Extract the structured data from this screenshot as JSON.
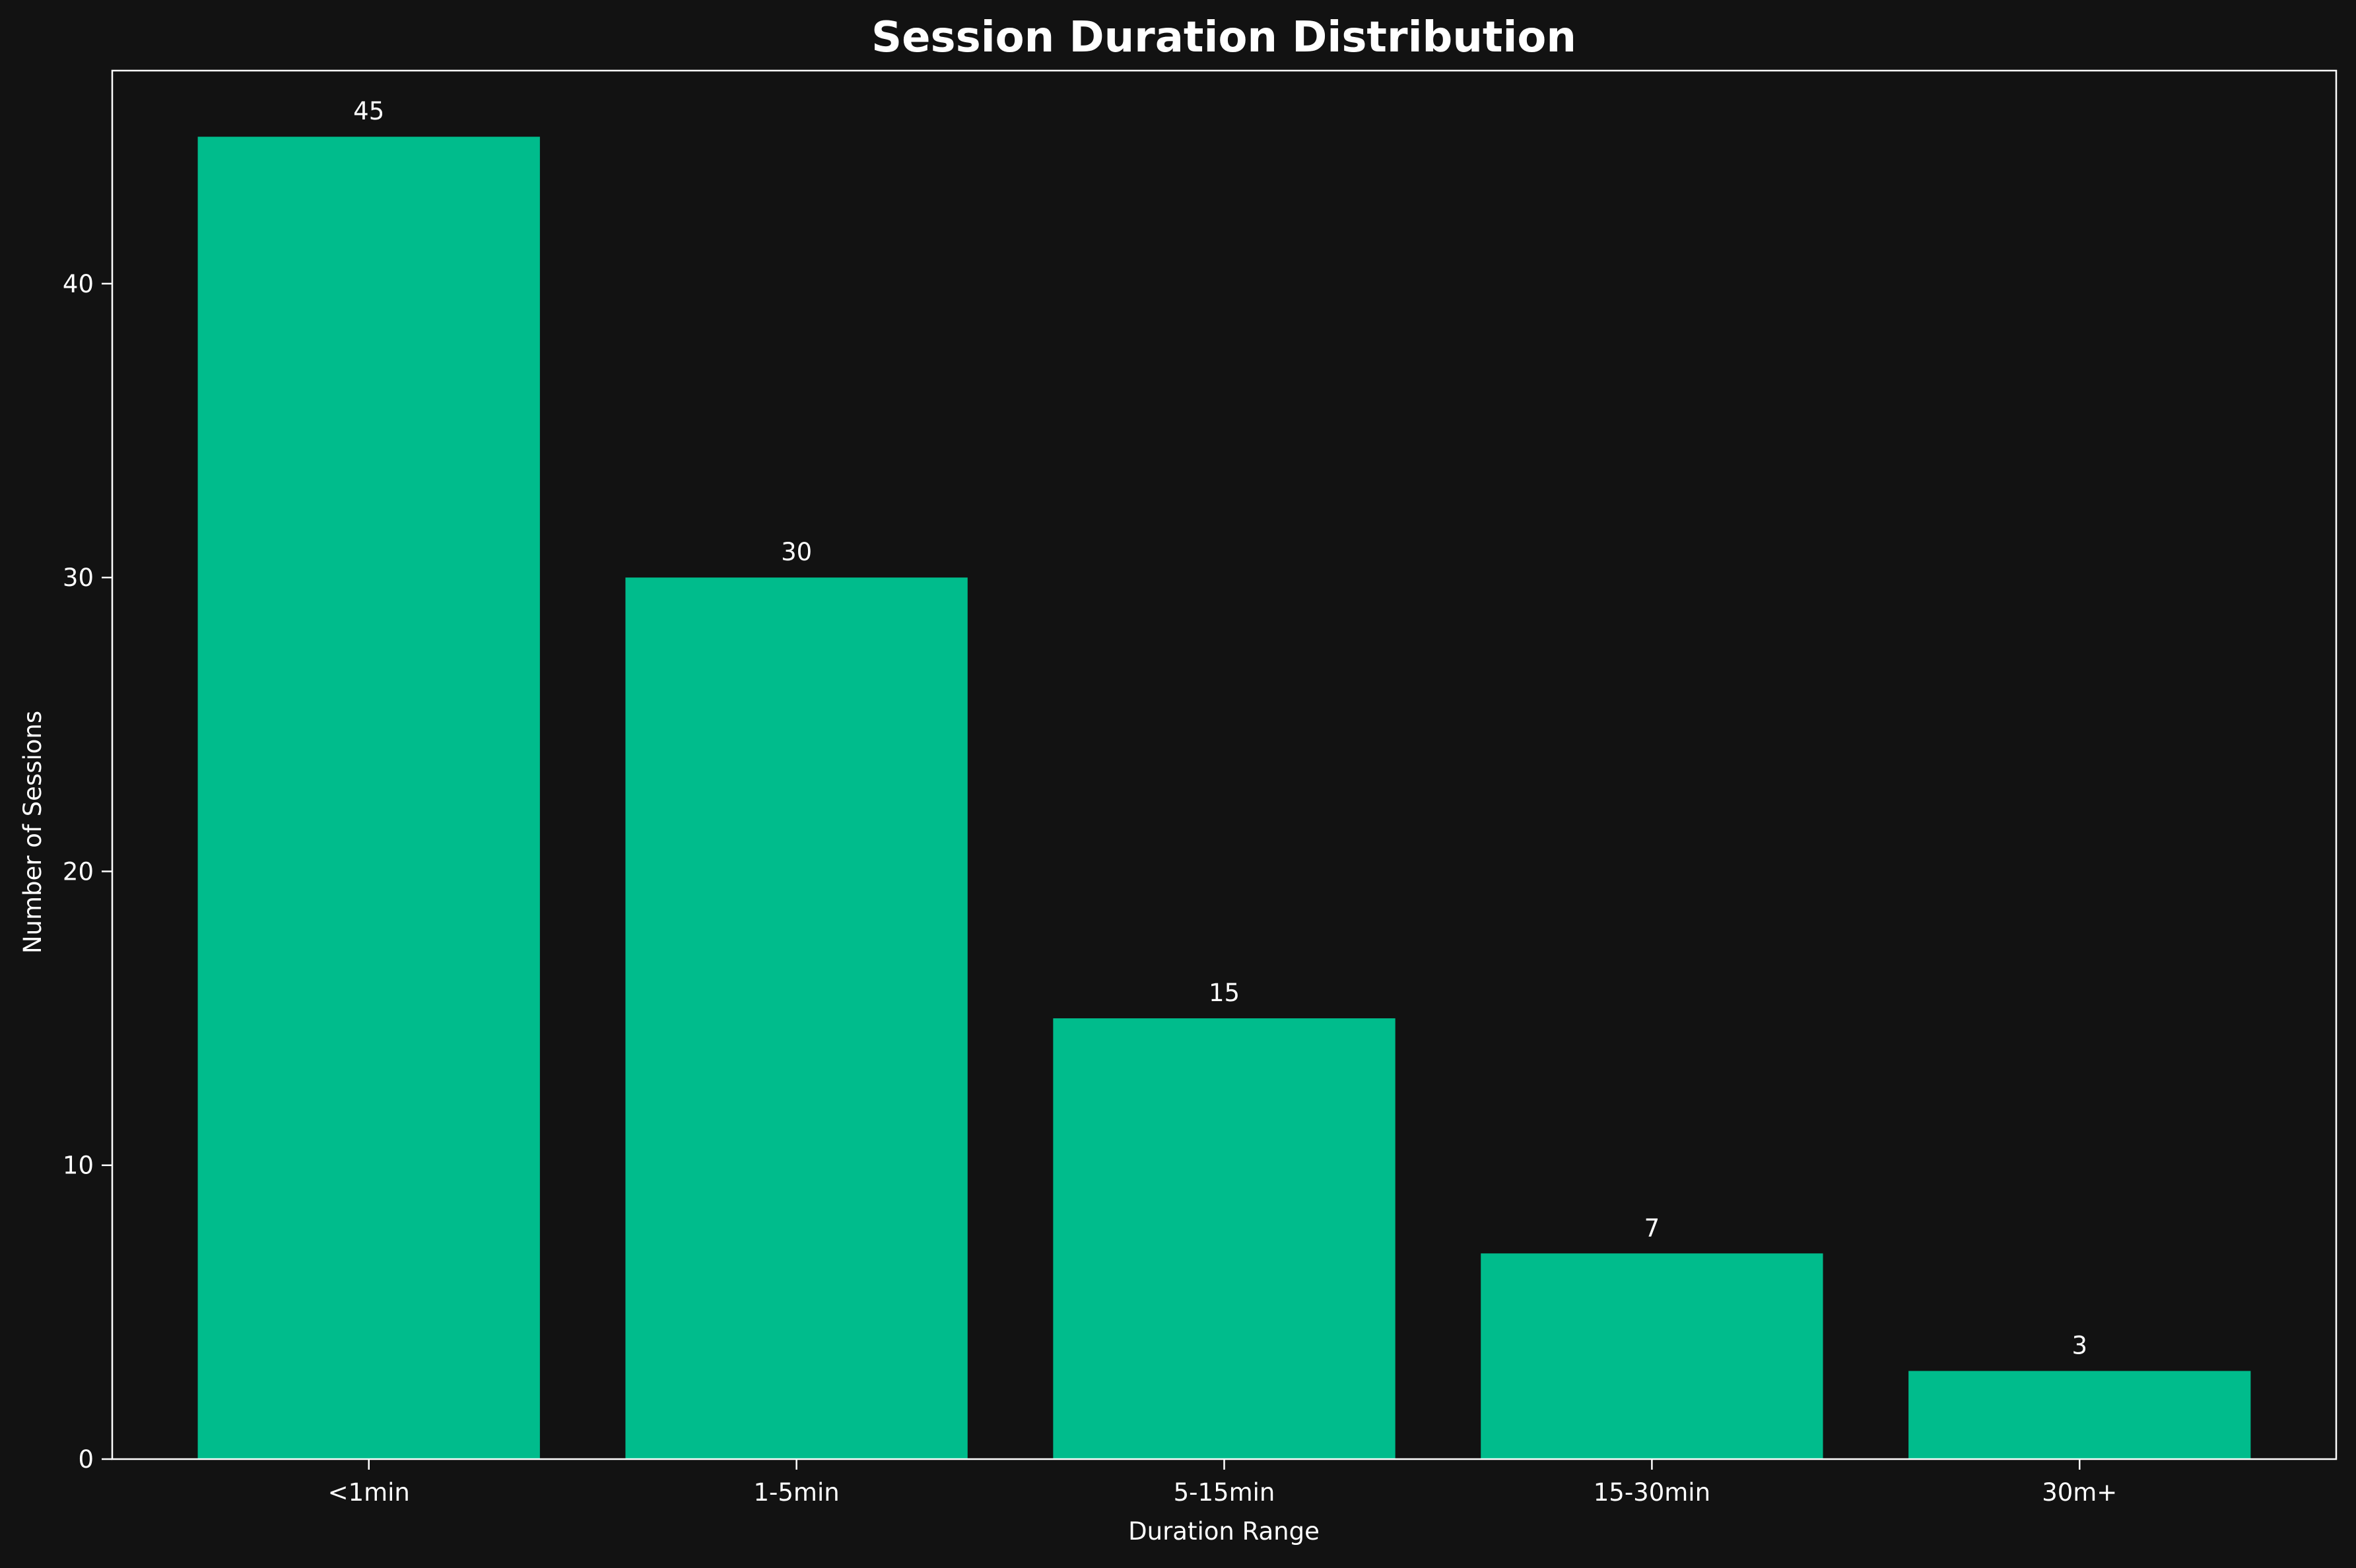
{
  "chart_data": {
    "type": "bar",
    "title": "Session Duration Distribution",
    "xlabel": "Duration Range",
    "ylabel": "Number of Sessions",
    "categories": [
      "<1min",
      "1-5min",
      "5-15min",
      "15-30min",
      "30m+"
    ],
    "values": [
      45,
      30,
      15,
      7,
      3
    ],
    "value_labels": [
      "45",
      "30",
      "15",
      "7",
      "3"
    ],
    "ylim": [
      0,
      47.25
    ],
    "yticks": [
      0,
      10,
      20,
      30,
      40
    ],
    "ytick_labels": [
      "0",
      "10",
      "20",
      "30",
      "40"
    ],
    "grid": false,
    "colors": {
      "background": "#121212",
      "bar": "#00BC8C",
      "text": "#ffffff",
      "axes": "#ffffff"
    }
  }
}
